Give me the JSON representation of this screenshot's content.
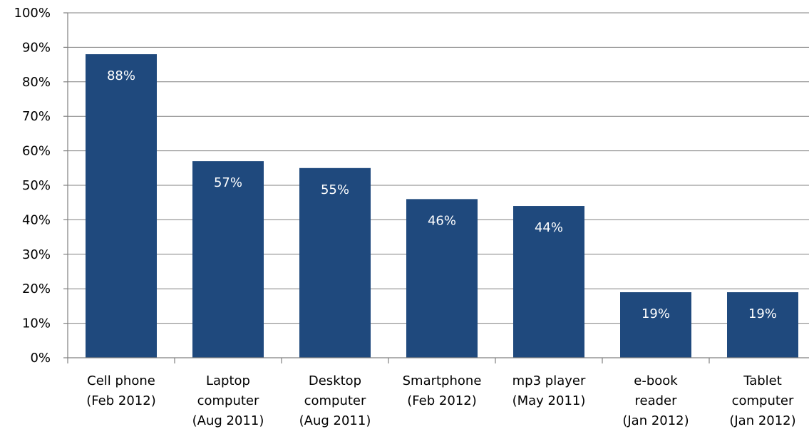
{
  "chart_data": {
    "type": "bar",
    "categories": [
      [
        "Cell phone",
        "(Feb 2012)"
      ],
      [
        "Laptop",
        "computer",
        "(Aug 2011)"
      ],
      [
        "Desktop",
        "computer",
        "(Aug 2011)"
      ],
      [
        "Smartphone",
        "(Feb 2012)"
      ],
      [
        "mp3 player",
        "(May 2011)"
      ],
      [
        "e-book",
        "reader",
        "(Jan 2012)"
      ],
      [
        "Tablet",
        "computer",
        "(Jan 2012)"
      ]
    ],
    "values": [
      88,
      57,
      55,
      46,
      44,
      19,
      19
    ],
    "data_labels": [
      "88%",
      "57%",
      "55%",
      "46%",
      "44%",
      "19%",
      "19%"
    ],
    "ylim": [
      0,
      100
    ],
    "yticks": [
      0,
      10,
      20,
      30,
      40,
      50,
      60,
      70,
      80,
      90,
      100
    ],
    "ytick_labels": [
      "0%",
      "10%",
      "20%",
      "30%",
      "40%",
      "50%",
      "60%",
      "70%",
      "80%",
      "90%",
      "100%"
    ],
    "grid": true,
    "bar_color": "#1F497D",
    "label_color": "#FFFFFF",
    "title": "",
    "xlabel": "",
    "ylabel": ""
  }
}
